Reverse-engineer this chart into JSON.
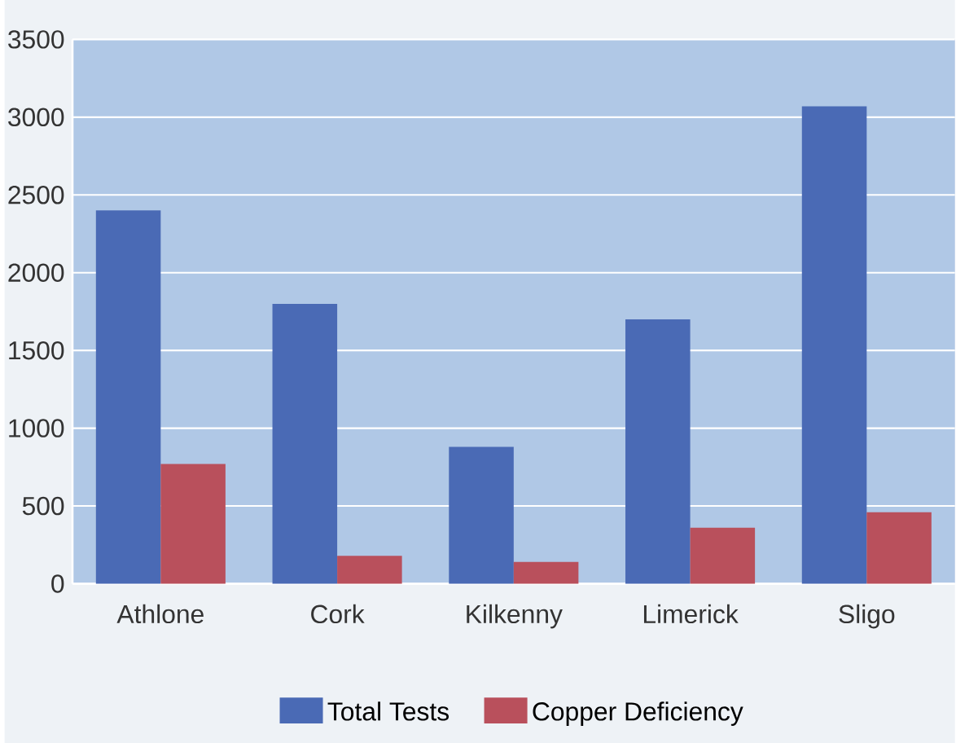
{
  "chart_data": {
    "type": "bar",
    "categories": [
      "Athlone",
      "Cork",
      "Kilkenny",
      "Limerick",
      "Sligo"
    ],
    "series": [
      {
        "name": "Total Tests",
        "color": "#4a6ab5",
        "values": [
          2400,
          1800,
          880,
          1700,
          3070
        ]
      },
      {
        "name": "Copper Deficiency",
        "color": "#b9505c",
        "values": [
          770,
          180,
          140,
          360,
          460
        ]
      }
    ],
    "ylim": [
      0,
      3500
    ],
    "yticks": [
      0,
      500,
      1000,
      1500,
      2000,
      2500,
      3000,
      3500
    ],
    "grid": "y",
    "legend": "bottom"
  }
}
